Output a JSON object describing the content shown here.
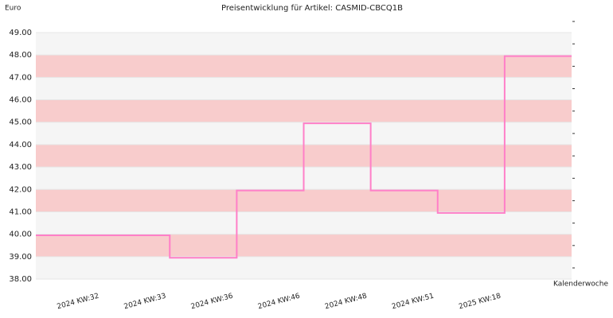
{
  "chart_data": {
    "type": "step",
    "title": "Preisentwicklung für Artikel: CASMID-CBCQ1B",
    "y_label": "Euro",
    "x_label": "Kalenderwoche",
    "categories": [
      "2024 KW:32",
      "2024 KW:33",
      "2024 KW:36",
      "2024 KW:46",
      "2024 KW:48",
      "2024 KW:51",
      "2025 KW:18"
    ],
    "values": [
      39.95,
      38.95,
      41.95,
      44.95,
      41.95,
      40.95,
      47.95
    ],
    "color": "#ff7fc8",
    "ylim": [
      38,
      49
    ],
    "yticks": [
      {
        "value": 38,
        "label": "38.00"
      },
      {
        "value": 39,
        "label": "39.00"
      },
      {
        "value": 40,
        "label": "40.00"
      },
      {
        "value": 41,
        "label": "41.00"
      },
      {
        "value": 42,
        "label": "42.00"
      },
      {
        "value": 43,
        "label": "43.00"
      },
      {
        "value": 44,
        "label": "44.00"
      },
      {
        "value": 45,
        "label": "45.00"
      },
      {
        "value": 46,
        "label": "46.00"
      },
      {
        "value": 47,
        "label": "47.00"
      },
      {
        "value": 48,
        "label": "48.00"
      },
      {
        "value": 49,
        "label": "49.00"
      }
    ],
    "band_colors": [
      "#f5f5f5",
      "#f8cccc"
    ]
  }
}
